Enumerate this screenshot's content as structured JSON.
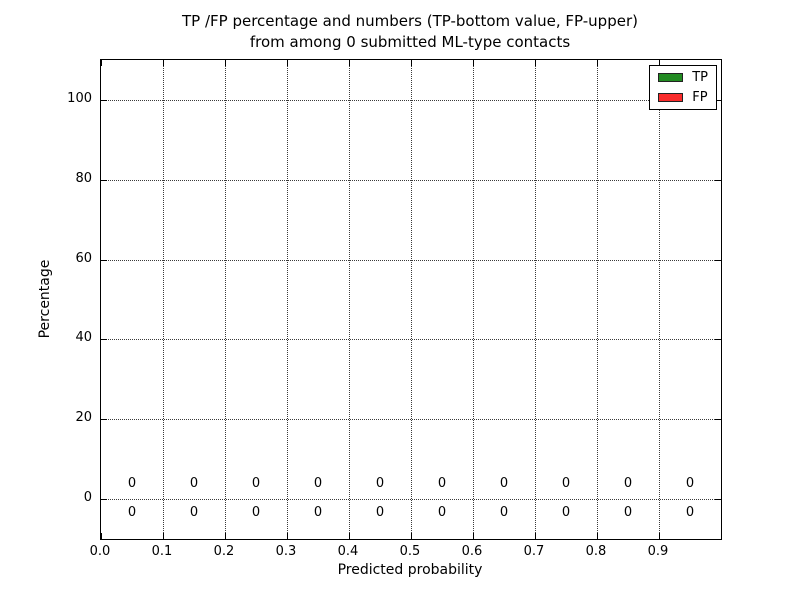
{
  "chart_data": {
    "type": "bar",
    "title": {
      "line1": "TP /FP percentage and numbers (TP-bottom value, FP-upper)",
      "line2": "from among 0 submitted ML-type contacts"
    },
    "xlabel": "Predicted probability",
    "ylabel": "Percentage",
    "xlim": [
      0.0,
      1.0
    ],
    "ylim": [
      -10,
      110
    ],
    "grid": true,
    "grid_style": "dotted",
    "x_ticks": [
      {
        "value": 0.0,
        "label": "0.0"
      },
      {
        "value": 0.1,
        "label": "0.1"
      },
      {
        "value": 0.2,
        "label": "0.2"
      },
      {
        "value": 0.3,
        "label": "0.3"
      },
      {
        "value": 0.4,
        "label": "0.4"
      },
      {
        "value": 0.5,
        "label": "0.5"
      },
      {
        "value": 0.6,
        "label": "0.6"
      },
      {
        "value": 0.7,
        "label": "0.7"
      },
      {
        "value": 0.8,
        "label": "0.8"
      },
      {
        "value": 0.9,
        "label": "0.9"
      }
    ],
    "y_ticks": [
      {
        "value": 0,
        "label": "0"
      },
      {
        "value": 20,
        "label": "20"
      },
      {
        "value": 40,
        "label": "40"
      },
      {
        "value": 60,
        "label": "60"
      },
      {
        "value": 80,
        "label": "80"
      },
      {
        "value": 100,
        "label": "100"
      }
    ],
    "bin_centers": [
      0.05,
      0.15,
      0.25,
      0.35,
      0.45,
      0.55,
      0.65,
      0.75,
      0.85,
      0.95
    ],
    "series": [
      {
        "name": "TP",
        "color": "#228b22",
        "values": [
          0,
          0,
          0,
          0,
          0,
          0,
          0,
          0,
          0,
          0
        ],
        "label_row": "bottom",
        "label_y": -3.6
      },
      {
        "name": "FP",
        "color": "#f92c2c",
        "values": [
          0,
          0,
          0,
          0,
          0,
          0,
          0,
          0,
          0,
          0
        ],
        "label_row": "upper",
        "label_y": 3.8
      }
    ],
    "legend": {
      "position": "upper right",
      "entries": [
        {
          "name": "TP",
          "color": "#228b22"
        },
        {
          "name": "FP",
          "color": "#f92c2c"
        }
      ]
    }
  }
}
